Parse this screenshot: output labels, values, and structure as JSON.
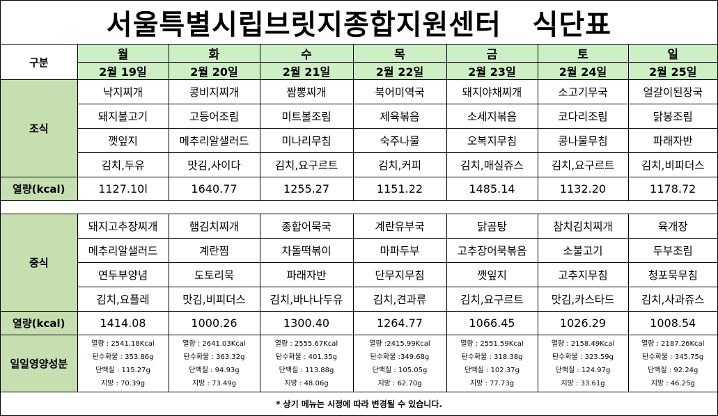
{
  "title": "서울특별시립브릿지종합지원센터   식단표",
  "header_label": "구분",
  "days": [
    {
      "day": "월",
      "date": "2월 19일"
    },
    {
      "day": "화",
      "date": "2월 20일"
    },
    {
      "day": "수",
      "date": "2월 21일"
    },
    {
      "day": "목",
      "date": "2월 22일"
    },
    {
      "day": "금",
      "date": "2월 23일"
    },
    {
      "day": "토",
      "date": "2월 24일"
    },
    {
      "day": "일",
      "date": "2월 25일"
    }
  ],
  "breakfast": {
    "label": "조식",
    "rows": [
      [
        "낙지찌개",
        "콩비지찌개",
        "짬뽕찌개",
        "북어미역국",
        "돼지야채찌개",
        "소고기무국",
        "얼갈이된장국"
      ],
      [
        "돼지불고기",
        "고등어조림",
        "미트볼조림",
        "제육볶음",
        "소세지볶음",
        "코다리조림",
        "닭봉조림"
      ],
      [
        "깻잎지",
        "메추리알샐러드",
        "미나리무침",
        "숙주나물",
        "오복지무침",
        "콩나물무침",
        "파래자반"
      ],
      [
        "김치,두유",
        "맛김,사이다",
        "김치,요구르트",
        "김치,커피",
        "김치,매실쥬스",
        "김치,요구르트",
        "김치,비피더스"
      ]
    ],
    "kcal_label": "열량(kcal)",
    "kcal": [
      "1127.10l",
      "1640.77",
      "1255.27",
      "1151.22",
      "1485.14",
      "1132.20",
      "1178.72"
    ]
  },
  "lunch": {
    "label": "중식",
    "rows": [
      [
        "돼지고추장찌개",
        "햄김치찌개",
        "종합어묵국",
        "계란유부국",
        "닭곰탕",
        "참치김치찌개",
        "육개장"
      ],
      [
        "메추리알샐러드",
        "계란찜",
        "차돌떡볶이",
        "마파두부",
        "고추장어묵볶음",
        "소불고기",
        "두부조림"
      ],
      [
        "연두부양념",
        "도토리묵",
        "파래자반",
        "단무지무침",
        "깻잎지",
        "고추지무침",
        "청포묵무침"
      ],
      [
        "김치,요플레",
        "맛김,비피더스",
        "김치,바나나두유",
        "김치,견과류",
        "김치,요구르트",
        "맛김,카스타드",
        "김치,사과쥬스"
      ]
    ],
    "kcal_label": "열량(kcal)",
    "kcal": [
      "1414.08",
      "1000.26",
      "1300.40",
      "1264.77",
      "1066.45",
      "1026.29",
      "1008.54"
    ]
  },
  "nutrition": {
    "label": "일일영양성분",
    "days": [
      [
        "열량 : 2541.18Kcal",
        "탄수화물 : 353.86g",
        "단백질 : 115.27g",
        "지방 : 70.39g"
      ],
      [
        "열량 : 2641.03Kcal",
        "탄수화물 : 363.32g",
        "단백질 : 94.93g",
        "지방 : 73.49g"
      ],
      [
        "열량 : 2555.67Kcal",
        "탄수화물 : 401.35g",
        "단백질 : 113.88g",
        "지방 : 48.06g"
      ],
      [
        "열량 :2415.99Kcal",
        "탄수화물 :349.68g",
        "단백질 : 105.05g",
        "지방 : 62.70g"
      ],
      [
        "열량 : 2551.59Kcal",
        "탄수화물 : 318.38g",
        "단백질 : 102.37g",
        "지방 : 77.73g"
      ],
      [
        "열량 : 2158.49Kcal",
        "탄수화물 : 323.59g",
        "단백질 : 124.97g",
        "지방 : 33.61g"
      ],
      [
        "열량 : 2187.26Kcal",
        "탄수화물 : 345.75g",
        "단백질 : 92.24g",
        "지방 : 46.25g"
      ]
    ]
  },
  "note": "* 상기 메뉴는 시정에 따라 변경될 수 있습니다."
}
